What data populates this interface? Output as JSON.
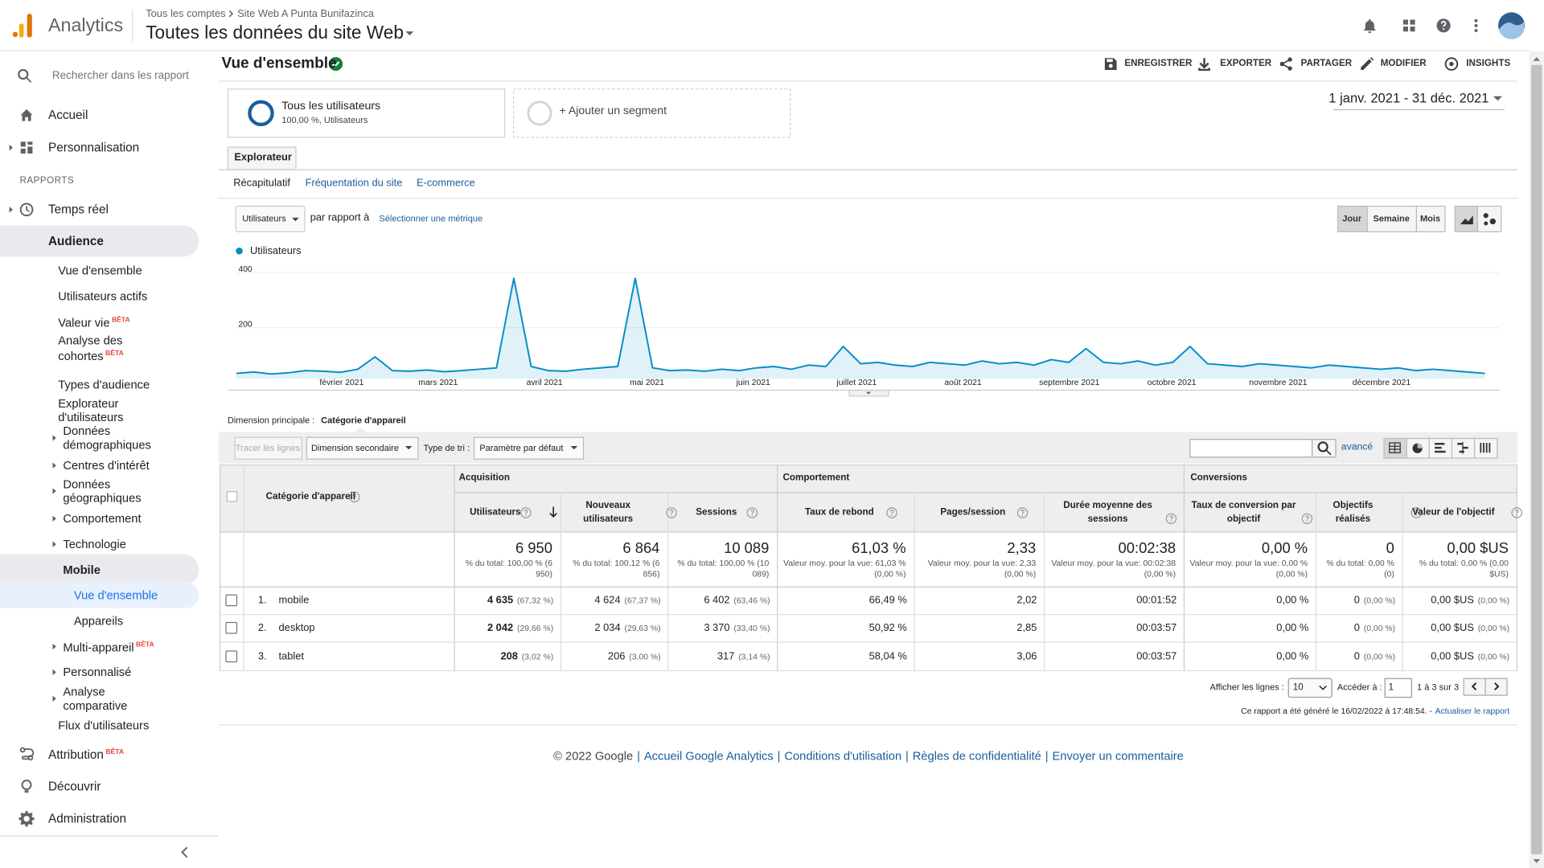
{
  "header": {
    "app_name": "Analytics",
    "breadcrumb": [
      "Tous les comptes",
      "Site Web A Punta Bunifazinca"
    ],
    "view": "Toutes les données du site Web"
  },
  "sidebar": {
    "search_placeholder": "Rechercher dans les rapport",
    "section_label": "RAPPORTS",
    "items": [
      {
        "label": "Accueil"
      },
      {
        "label": "Personnalisation"
      },
      {
        "label": "Temps réel"
      },
      {
        "label": "Audience"
      },
      {
        "label": "Vue d'ensemble"
      },
      {
        "label": "Utilisateurs actifs"
      },
      {
        "label": "Valeur vie",
        "badge": "BÊTA"
      },
      {
        "label": "Analyse des cohortes",
        "badge": "BÊTA"
      },
      {
        "label": "Types d'audience"
      },
      {
        "label": "Explorateur d'utilisateurs"
      },
      {
        "label": "Données démographiques"
      },
      {
        "label": "Centres d'intérêt"
      },
      {
        "label": "Données géographiques"
      },
      {
        "label": "Comportement"
      },
      {
        "label": "Technologie"
      },
      {
        "label": "Mobile"
      },
      {
        "label": "Vue d'ensemble"
      },
      {
        "label": "Appareils"
      },
      {
        "label": "Multi-appareil",
        "badge": "BÊTA"
      },
      {
        "label": "Personnalisé"
      },
      {
        "label": "Analyse comparative"
      },
      {
        "label": "Flux d'utilisateurs"
      },
      {
        "label": "Attribution",
        "badge": "BÊTA"
      },
      {
        "label": "Découvrir"
      },
      {
        "label": "Administration"
      }
    ]
  },
  "report": {
    "title": "Vue d'ensemble",
    "actions": [
      "ENREGISTRER",
      "EXPORTER",
      "PARTAGER",
      "MODIFIER",
      "INSIGHTS"
    ],
    "segment": {
      "name": "Tous les utilisateurs",
      "detail": "100,00 %, Utilisateurs"
    },
    "add_segment": "+ Ajouter un segment",
    "date_range": "1 janv. 2021 - 31 déc. 2021",
    "tab": "Explorateur",
    "subtabs": [
      "Récapitulatif",
      "Fréquentation du site",
      "E-commerce"
    ],
    "metric": "Utilisateurs",
    "compare_label": "par rapport à",
    "compare_link": "Sélectionner une métrique",
    "granularity": [
      "Jour",
      "Semaine",
      "Mois"
    ]
  },
  "chart_data": {
    "type": "line",
    "series": [
      {
        "name": "Utilisateurs",
        "color": "#058dc7",
        "values": [
          20,
          25,
          18,
          22,
          30,
          28,
          24,
          35,
          80,
          30,
          28,
          32,
          26,
          30,
          35,
          40,
          365,
          45,
          30,
          28,
          35,
          40,
          45,
          365,
          40,
          30,
          32,
          28,
          35,
          30,
          40,
          45,
          35,
          50,
          45,
          118,
          55,
          60,
          50,
          45,
          60,
          55,
          50,
          65,
          55,
          60,
          50,
          70,
          60,
          110,
          60,
          55,
          65,
          50,
          60,
          118,
          55,
          50,
          45,
          55,
          50,
          45,
          40,
          50,
          45,
          40,
          35,
          40,
          30,
          35,
          30,
          25,
          20
        ]
      }
    ],
    "x_labels": [
      "février 2021",
      "mars 2021",
      "avril 2021",
      "mai 2021",
      "juin 2021",
      "juillet 2021",
      "août 2021",
      "septembre 2021",
      "octobre 2021",
      "novembre 2021",
      "décembre 2021"
    ],
    "ylim": [
      0,
      400
    ],
    "yticks": [
      200,
      400
    ]
  },
  "dimension": {
    "label": "Dimension principale :",
    "value": "Catégorie d'appareil"
  },
  "table_controls": {
    "plot_rows": "Tracer les lignes",
    "secondary_dimension": "Dimension secondaire",
    "sort_label": "Type de tri :",
    "sort_value": "Paramètre par défaut",
    "advanced": "avancé"
  },
  "table": {
    "dimension_header": "Catégorie d'appareil",
    "groups": [
      "Acquisition",
      "Comportement",
      "Conversions"
    ],
    "columns": [
      "Utilisateurs",
      "Nouveaux utilisateurs",
      "Sessions",
      "Taux de rebond",
      "Pages/session",
      "Durée moyenne des sessions",
      "Taux de conversion par objectif",
      "Objectifs réalisés",
      "Valeur de l'objectif"
    ],
    "totals": [
      {
        "value": "6 950",
        "detail": "% du total: 100,00 % (6 950)"
      },
      {
        "value": "6 864",
        "detail": "% du total: 100,12 % (6 856)"
      },
      {
        "value": "10 089",
        "detail": "% du total: 100,00 % (10 089)"
      },
      {
        "value": "61,03 %",
        "detail": "Valeur moy. pour la vue: 61,03 % (0,00 %)"
      },
      {
        "value": "2,33",
        "detail": "Valeur moy. pour la vue: 2,33 (0,00 %)"
      },
      {
        "value": "00:02:38",
        "detail": "Valeur moy. pour la vue: 00:02:38 (0,00 %)"
      },
      {
        "value": "0,00 %",
        "detail": "Valeur moy. pour la vue: 0,00 % (0,00 %)"
      },
      {
        "value": "0",
        "detail": "% du total: 0,00 % (0)"
      },
      {
        "value": "0,00 $US",
        "detail": "% du total: 0,00 % (0,00 $US)"
      }
    ],
    "rows": [
      {
        "index": "1.",
        "name": "mobile",
        "cells": [
          {
            "value": "4 635",
            "share": "(67,32 %)"
          },
          {
            "value": "4 624",
            "share": "(67,37 %)"
          },
          {
            "value": "6 402",
            "share": "(63,46 %)"
          },
          {
            "value": "66,49 %"
          },
          {
            "value": "2,02"
          },
          {
            "value": "00:01:52"
          },
          {
            "value": "0,00 %"
          },
          {
            "value": "0",
            "share": "(0,00 %)"
          },
          {
            "value": "0,00 $US",
            "share": "(0,00 %)"
          }
        ]
      },
      {
        "index": "2.",
        "name": "desktop",
        "cells": [
          {
            "value": "2 042",
            "share": "(29,66 %)"
          },
          {
            "value": "2 034",
            "share": "(29,63 %)"
          },
          {
            "value": "3 370",
            "share": "(33,40 %)"
          },
          {
            "value": "50,92 %"
          },
          {
            "value": "2,85"
          },
          {
            "value": "00:03:57"
          },
          {
            "value": "0,00 %"
          },
          {
            "value": "0",
            "share": "(0,00 %)"
          },
          {
            "value": "0,00 $US",
            "share": "(0,00 %)"
          }
        ]
      },
      {
        "index": "3.",
        "name": "tablet",
        "cells": [
          {
            "value": "208",
            "share": "(3,02 %)"
          },
          {
            "value": "206",
            "share": "(3,00 %)"
          },
          {
            "value": "317",
            "share": "(3,14 %)"
          },
          {
            "value": "58,04 %"
          },
          {
            "value": "3,06"
          },
          {
            "value": "00:03:57"
          },
          {
            "value": "0,00 %"
          },
          {
            "value": "0",
            "share": "(0,00 %)"
          },
          {
            "value": "0,00 $US",
            "share": "(0,00 %)"
          }
        ]
      }
    ]
  },
  "pagination": {
    "rows_label": "Afficher les lignes :",
    "rows_value": "10",
    "goto_label": "Accéder à :",
    "goto_value": "1",
    "range": "1 à 3 sur 3",
    "generated": "Ce rapport a été généré le 16/02/2022 à 17:48:54. -",
    "refresh": "Actualiser le rapport"
  },
  "footer": {
    "copyright": "© 2022 Google",
    "separator": "|",
    "links": [
      "Accueil Google Analytics",
      "Conditions d'utilisation",
      "Règles de confidentialité",
      "Envoyer un commentaire"
    ]
  }
}
